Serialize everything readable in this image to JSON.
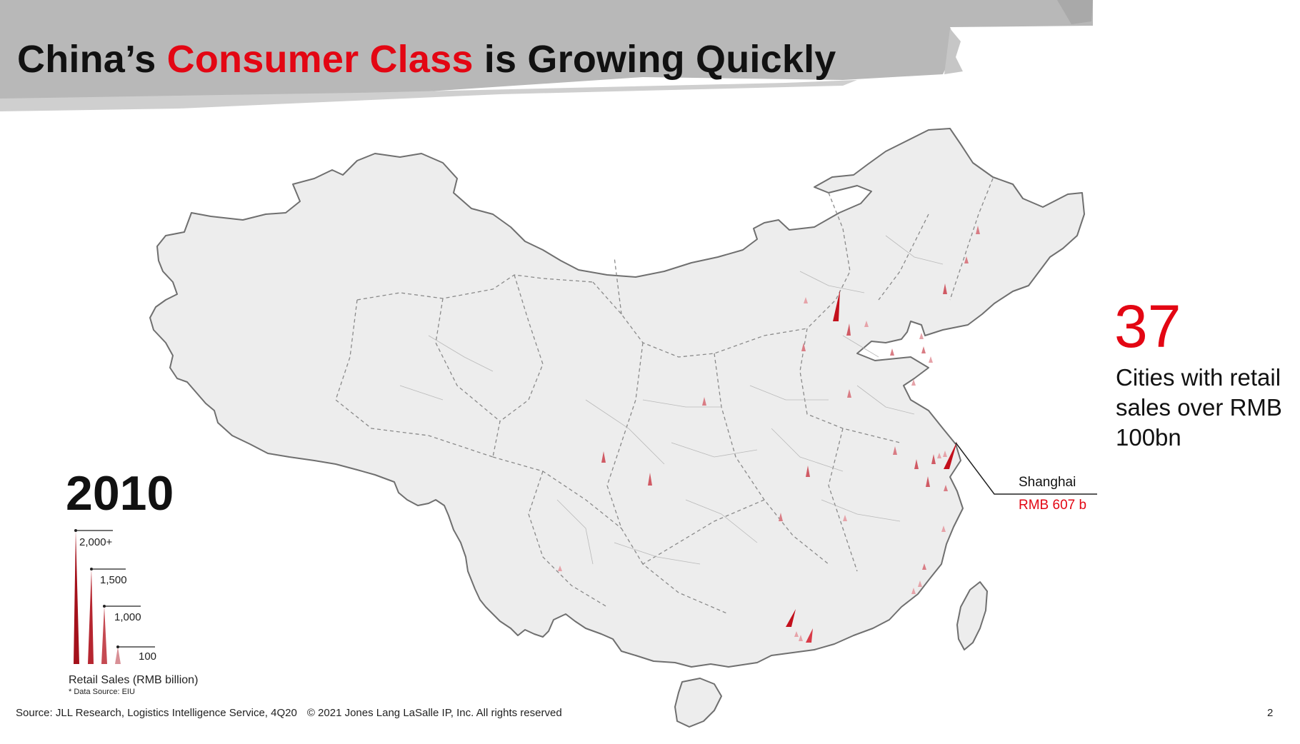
{
  "title": {
    "prefix": "China’s ",
    "highlight": "Consumer Class",
    "suffix": " is Growing Quickly"
  },
  "year": "2010",
  "legend": {
    "labels": [
      "2,000+",
      "1,500",
      "1,000",
      "100"
    ],
    "caption": "Retail Sales (RMB billion)",
    "source": "* Data Source: EIU"
  },
  "stat": {
    "number": "37",
    "text": "Cities with retail sales over RMB 100bn"
  },
  "callout": {
    "city": "Shanghai",
    "value": "RMB 607 b"
  },
  "footer": {
    "source": "Source: JLL Research, Logistics Intelligence Service, 4Q20",
    "copyright": "© 2021 Jones Lang LaSalle IP, Inc. All rights reserved",
    "page": "2"
  },
  "colors": {
    "accent": "#e30613",
    "spike_dark": "#a4111b",
    "map_fill": "#ededed",
    "map_stroke": "#7f7f7f",
    "band": "#b6b6b6"
  },
  "icons": [
    "retail-sales-spike-icon"
  ]
}
